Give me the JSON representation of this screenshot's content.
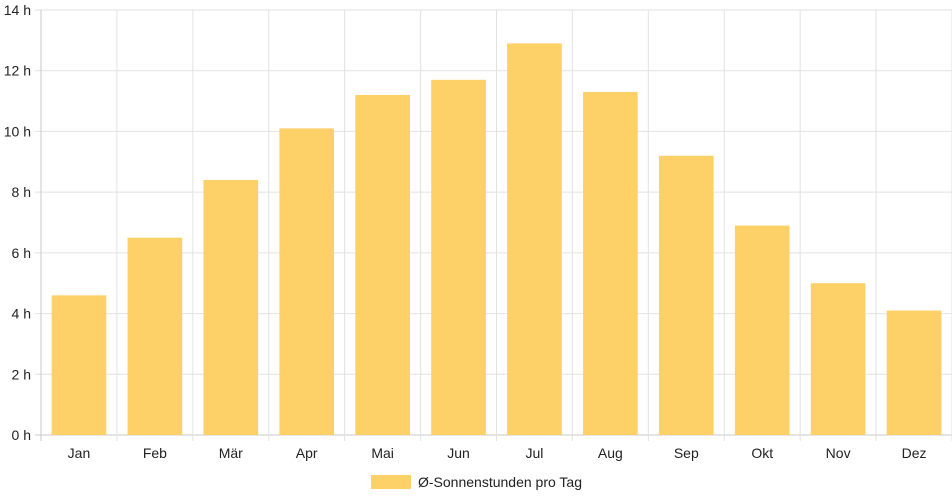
{
  "chart_data": {
    "type": "bar",
    "categories": [
      "Jan",
      "Feb",
      "Mär",
      "Apr",
      "Mai",
      "Jun",
      "Jul",
      "Aug",
      "Sep",
      "Okt",
      "Nov",
      "Dez"
    ],
    "series": [
      {
        "name": "Ø-Sonnenstunden pro Tag",
        "values": [
          4.6,
          6.5,
          8.4,
          10.1,
          11.2,
          11.7,
          12.9,
          11.3,
          9.2,
          6.9,
          5.0,
          4.1
        ],
        "color": "#fdd068"
      }
    ],
    "yticks": [
      "0 h",
      "2 h",
      "4 h",
      "6 h",
      "8 h",
      "10 h",
      "12 h",
      "14 h"
    ],
    "ylim": [
      0,
      14
    ],
    "grid": true,
    "legend_position": "bottom-center"
  }
}
